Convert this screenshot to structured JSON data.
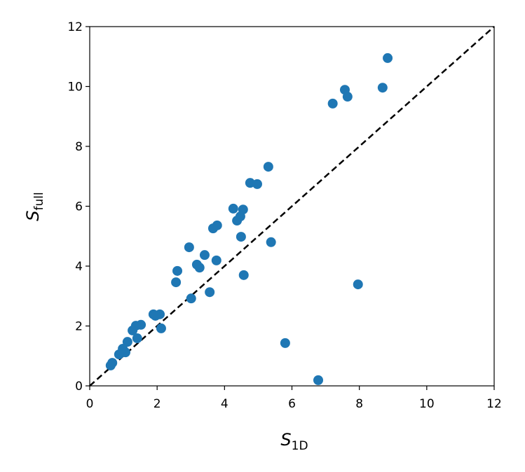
{
  "chart_data": {
    "type": "scatter",
    "xlabel": {
      "main": "S",
      "sub": "1D"
    },
    "ylabel": {
      "main": "S",
      "sub": "full"
    },
    "color": "#1f77b4",
    "identity_line": true,
    "x": [
      8.84,
      7.57,
      7.65,
      7.21,
      8.69,
      5.3,
      4.76,
      4.97,
      4.26,
      4.55,
      4.47,
      4.37,
      3.78,
      3.66,
      4.49,
      5.38,
      2.95,
      3.41,
      3.76,
      3.18,
      3.26,
      2.6,
      2.56,
      4.57,
      7.96,
      3.56,
      3.01,
      1.89,
      2.08,
      1.95,
      2.12,
      1.52,
      1.37,
      1.27,
      1.41,
      1.12,
      1.06,
      0.98,
      0.87,
      0.67,
      0.62,
      5.8,
      6.78
    ],
    "y": [
      10.95,
      9.89,
      9.66,
      9.43,
      9.96,
      7.32,
      6.78,
      6.74,
      5.92,
      5.89,
      5.66,
      5.52,
      5.36,
      5.26,
      4.98,
      4.8,
      4.63,
      4.37,
      4.19,
      4.05,
      3.95,
      3.84,
      3.46,
      3.7,
      3.39,
      3.13,
      2.92,
      2.39,
      2.39,
      2.34,
      1.92,
      2.04,
      2.01,
      1.85,
      1.59,
      1.47,
      1.12,
      1.24,
      1.05,
      0.77,
      0.68,
      1.43,
      0.19
    ],
    "xlim": [
      0,
      12
    ],
    "ylim": [
      0,
      12
    ],
    "xticks": [
      0,
      2,
      4,
      6,
      8,
      10,
      12
    ],
    "yticks": [
      0,
      2,
      4,
      6,
      8,
      10,
      12
    ]
  }
}
